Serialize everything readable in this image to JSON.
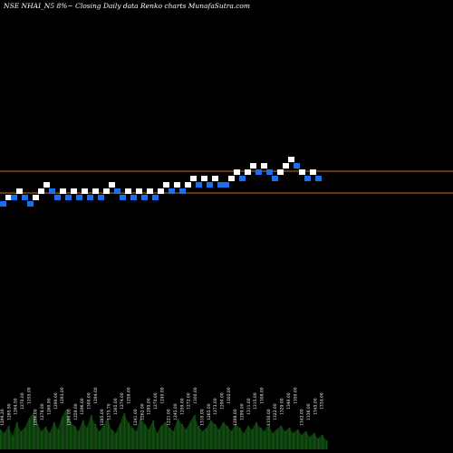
{
  "chart_data": {
    "type": "renko",
    "title": "NSE NHAI_N5 8%~ Closing Daily data Renko charts MunafaSutra.com",
    "colors": {
      "up": "#ffffff",
      "down": "#1e6fe6",
      "level_line": "#c8741a",
      "volume": "#0d3a0d",
      "background": "#000000"
    },
    "price_levels": [
      3,
      2
    ],
    "bricks": [
      {
        "level": 0,
        "dir": "down"
      },
      {
        "level": 1,
        "dir": "up"
      },
      {
        "level": 1,
        "dir": "down"
      },
      {
        "level": 2,
        "dir": "up"
      },
      {
        "level": 1,
        "dir": "down"
      },
      {
        "level": 0,
        "dir": "down"
      },
      {
        "level": 1,
        "dir": "up"
      },
      {
        "level": 2,
        "dir": "up"
      },
      {
        "level": 3,
        "dir": "up"
      },
      {
        "level": 2,
        "dir": "down"
      },
      {
        "level": 1,
        "dir": "down"
      },
      {
        "level": 2,
        "dir": "up"
      },
      {
        "level": 1,
        "dir": "down"
      },
      {
        "level": 2,
        "dir": "up"
      },
      {
        "level": 1,
        "dir": "down"
      },
      {
        "level": 2,
        "dir": "up"
      },
      {
        "level": 1,
        "dir": "down"
      },
      {
        "level": 2,
        "dir": "up"
      },
      {
        "level": 1,
        "dir": "down"
      },
      {
        "level": 2,
        "dir": "up"
      },
      {
        "level": 3,
        "dir": "up"
      },
      {
        "level": 2,
        "dir": "down"
      },
      {
        "level": 1,
        "dir": "down"
      },
      {
        "level": 2,
        "dir": "up"
      },
      {
        "level": 1,
        "dir": "down"
      },
      {
        "level": 2,
        "dir": "up"
      },
      {
        "level": 1,
        "dir": "down"
      },
      {
        "level": 2,
        "dir": "up"
      },
      {
        "level": 1,
        "dir": "down"
      },
      {
        "level": 2,
        "dir": "up"
      },
      {
        "level": 3,
        "dir": "up"
      },
      {
        "level": 2,
        "dir": "down"
      },
      {
        "level": 3,
        "dir": "up"
      },
      {
        "level": 2,
        "dir": "down"
      },
      {
        "level": 3,
        "dir": "up"
      },
      {
        "level": 4,
        "dir": "up"
      },
      {
        "level": 3,
        "dir": "down"
      },
      {
        "level": 4,
        "dir": "up"
      },
      {
        "level": 3,
        "dir": "down"
      },
      {
        "level": 4,
        "dir": "up"
      },
      {
        "level": 3,
        "dir": "down"
      },
      {
        "level": 3,
        "dir": "down"
      },
      {
        "level": 4,
        "dir": "up"
      },
      {
        "level": 5,
        "dir": "up"
      },
      {
        "level": 4,
        "dir": "down"
      },
      {
        "level": 5,
        "dir": "up"
      },
      {
        "level": 6,
        "dir": "up"
      },
      {
        "level": 5,
        "dir": "down"
      },
      {
        "level": 6,
        "dir": "up"
      },
      {
        "level": 5,
        "dir": "down"
      },
      {
        "level": 4,
        "dir": "down"
      },
      {
        "level": 5,
        "dir": "up"
      },
      {
        "level": 6,
        "dir": "up"
      },
      {
        "level": 7,
        "dir": "up"
      },
      {
        "level": 6,
        "dir": "down"
      },
      {
        "level": 5,
        "dir": "up"
      },
      {
        "level": 4,
        "dir": "down"
      },
      {
        "level": 5,
        "dir": "up"
      },
      {
        "level": 4,
        "dir": "down"
      }
    ],
    "volume": [
      22,
      18,
      26,
      15,
      30,
      20,
      24,
      34,
      40,
      28,
      20,
      25,
      18,
      30,
      22,
      36,
      44,
      30,
      26,
      20,
      32,
      24,
      38,
      28,
      20,
      26,
      34,
      22,
      18,
      28,
      40,
      30,
      24,
      20,
      36,
      28,
      22,
      32,
      18,
      26,
      30,
      24,
      20,
      34,
      28,
      22,
      30,
      38,
      26,
      20,
      24,
      32,
      28,
      22,
      30,
      26,
      20,
      28,
      24,
      18,
      26,
      22,
      30,
      24,
      20,
      28,
      18,
      22,
      26,
      20,
      24,
      18,
      22,
      16,
      20,
      14,
      18,
      12,
      16,
      10
    ],
    "volume_labels": [
      "1299.20",
      "1285.90",
      "1264.50",
      "1270.00",
      "1255.00",
      "1296.00",
      "1278.00",
      "1260.90",
      "1290.00",
      "1293.00",
      "1280.00",
      "1259.00",
      "1296.00",
      "1300.00",
      "1294.00",
      "1285.00",
      "1275.70",
      "1265.00",
      "1274.00",
      "1258.00",
      "1241.00",
      "1262.00",
      "1285.00",
      "1270.00",
      "1240.00",
      "1221.00",
      "1245.00",
      "1259.00",
      "1272.00",
      "1300.00",
      "1310.00",
      "1265.00",
      "1273.00",
      "1290.00",
      "1302.00",
      "1288.00",
      "1299.00",
      "1311.00",
      "1315.00",
      "1308.00",
      "1330.00",
      "1322.00",
      "1329.00",
      "1340.00",
      "1350.00",
      "1342.00",
      "1336.00",
      "1345.00",
      "1334.00"
    ]
  }
}
